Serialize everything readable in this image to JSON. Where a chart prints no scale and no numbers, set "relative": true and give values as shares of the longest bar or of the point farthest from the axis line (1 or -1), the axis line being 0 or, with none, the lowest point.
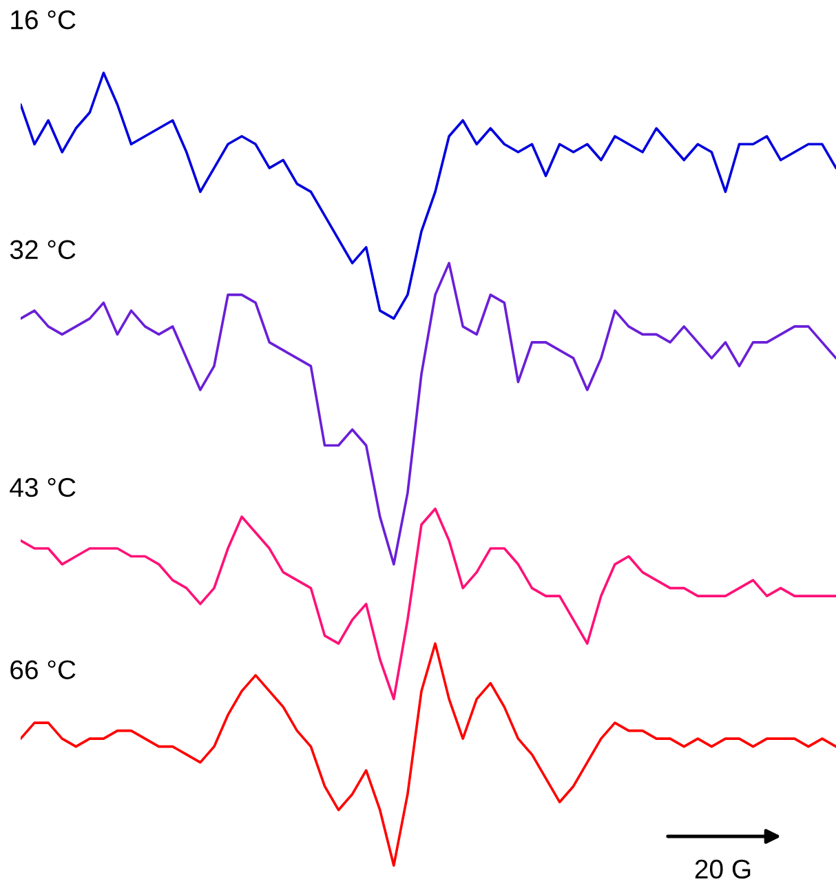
{
  "chart_data": {
    "type": "line",
    "relative": true,
    "categories": [
      null,
      null,
      null,
      null,
      null,
      null,
      null,
      null,
      null,
      null,
      null,
      null,
      null,
      null,
      null,
      null,
      null,
      null,
      null,
      null,
      null,
      null,
      null,
      null,
      null,
      null,
      null,
      null,
      null,
      null,
      null,
      null,
      null,
      null,
      null,
      null,
      null,
      null,
      null,
      null,
      null,
      null,
      null,
      null,
      null,
      null,
      null,
      null,
      null,
      null,
      null,
      null,
      null,
      null,
      null,
      null,
      null,
      null,
      null,
      null
    ],
    "series": [
      {
        "name": "16 °C",
        "color": "#0000dd",
        "values": [
          0.96,
          0.91,
          0.94,
          0.9,
          0.93,
          0.95,
          1.0,
          0.96,
          0.91,
          0.92,
          0.93,
          0.94,
          0.9,
          0.85,
          0.88,
          0.91,
          0.92,
          0.91,
          0.88,
          0.89,
          0.86,
          0.85,
          0.82,
          0.79,
          0.76,
          0.78,
          0.7,
          0.69,
          0.72,
          0.8,
          0.85,
          0.92,
          0.94,
          0.91,
          0.93,
          0.91,
          0.9,
          0.91,
          0.87,
          0.91,
          0.9,
          0.91,
          0.89,
          0.92,
          0.91,
          0.9,
          0.93,
          0.91,
          0.89,
          0.91,
          0.9,
          0.85,
          0.91,
          0.91,
          0.92,
          0.89,
          0.9,
          0.91,
          0.91,
          0.88
        ]
      },
      {
        "name": "32 °C",
        "color": "#6a1fd8",
        "values": [
          0.69,
          0.7,
          0.68,
          0.67,
          0.68,
          0.69,
          0.71,
          0.67,
          0.7,
          0.68,
          0.67,
          0.68,
          0.64,
          0.6,
          0.63,
          0.72,
          0.72,
          0.71,
          0.66,
          0.65,
          0.64,
          0.63,
          0.53,
          0.53,
          0.55,
          0.53,
          0.44,
          0.38,
          0.47,
          0.62,
          0.72,
          0.76,
          0.68,
          0.67,
          0.72,
          0.71,
          0.61,
          0.66,
          0.66,
          0.65,
          0.64,
          0.6,
          0.64,
          0.7,
          0.68,
          0.67,
          0.67,
          0.66,
          0.68,
          0.66,
          0.64,
          0.66,
          0.63,
          0.66,
          0.66,
          0.67,
          0.68,
          0.68,
          0.66,
          0.64
        ]
      },
      {
        "name": "43 °C",
        "color": "#ff1177",
        "values": [
          0.41,
          0.4,
          0.4,
          0.38,
          0.39,
          0.4,
          0.4,
          0.4,
          0.39,
          0.39,
          0.38,
          0.36,
          0.35,
          0.33,
          0.35,
          0.4,
          0.44,
          0.42,
          0.4,
          0.37,
          0.36,
          0.35,
          0.29,
          0.28,
          0.31,
          0.33,
          0.26,
          0.21,
          0.31,
          0.43,
          0.45,
          0.41,
          0.35,
          0.37,
          0.4,
          0.4,
          0.38,
          0.35,
          0.34,
          0.34,
          0.31,
          0.28,
          0.34,
          0.38,
          0.39,
          0.37,
          0.36,
          0.35,
          0.35,
          0.34,
          0.34,
          0.34,
          0.35,
          0.36,
          0.34,
          0.35,
          0.34,
          0.34,
          0.34,
          0.34
        ]
      },
      {
        "name": "66 °C",
        "color": "#ff0000",
        "values": [
          0.16,
          0.18,
          0.18,
          0.16,
          0.15,
          0.16,
          0.16,
          0.17,
          0.17,
          0.16,
          0.15,
          0.15,
          0.14,
          0.13,
          0.15,
          0.19,
          0.22,
          0.24,
          0.22,
          0.2,
          0.17,
          0.15,
          0.1,
          0.07,
          0.09,
          0.12,
          0.07,
          0.0,
          0.09,
          0.22,
          0.28,
          0.21,
          0.16,
          0.21,
          0.23,
          0.2,
          0.16,
          0.14,
          0.11,
          0.08,
          0.1,
          0.13,
          0.16,
          0.18,
          0.17,
          0.17,
          0.16,
          0.16,
          0.15,
          0.16,
          0.15,
          0.16,
          0.16,
          0.15,
          0.16,
          0.16,
          0.16,
          0.15,
          0.16,
          0.15
        ]
      }
    ],
    "annotations": [
      "20 G"
    ]
  }
}
